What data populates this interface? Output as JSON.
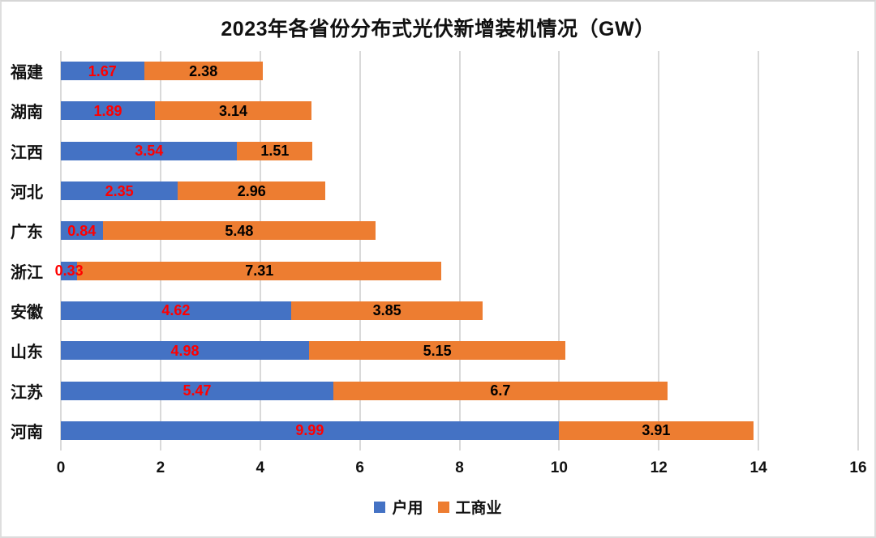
{
  "chart_data": {
    "type": "bar",
    "orientation": "horizontal",
    "stacked": true,
    "title": "2023年各省份分布式光伏新增装机情况（GW）",
    "categories": [
      "福建",
      "湖南",
      "江西",
      "河北",
      "广东",
      "浙江",
      "安徽",
      "山东",
      "江苏",
      "河南"
    ],
    "series": [
      {
        "name": "户用",
        "color": "#4472C4",
        "label_color": "#FF0000",
        "values": [
          1.67,
          1.89,
          3.54,
          2.35,
          0.84,
          0.33,
          4.62,
          4.98,
          5.47,
          9.99
        ]
      },
      {
        "name": "工商业",
        "color": "#ED7D31",
        "label_color": "#000000",
        "values": [
          2.38,
          3.14,
          1.51,
          2.96,
          5.48,
          7.31,
          3.85,
          5.15,
          6.7,
          3.91
        ]
      }
    ],
    "x_axis": {
      "min": 0,
      "max": 16,
      "tick_step": 2,
      "ticks": [
        0,
        2,
        4,
        6,
        8,
        10,
        12,
        14,
        16
      ]
    },
    "grid": true,
    "gridline_color": "#d9d9d9",
    "legend_position": "bottom"
  }
}
